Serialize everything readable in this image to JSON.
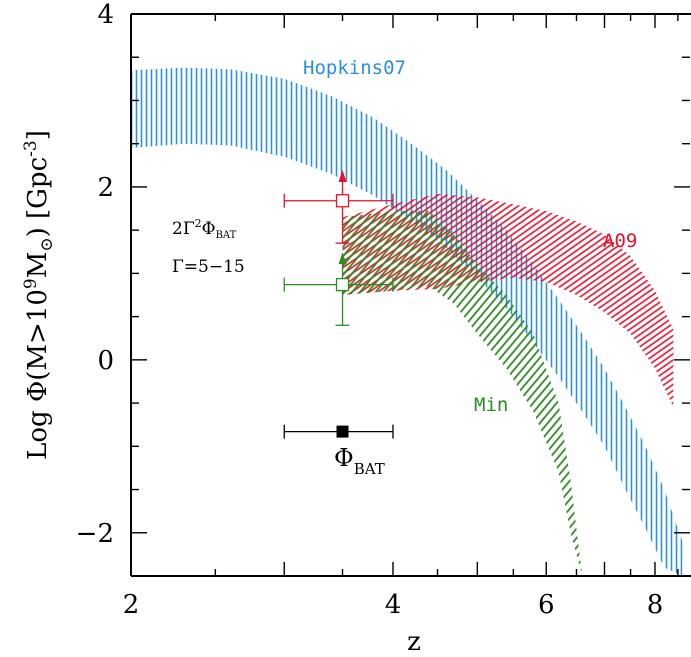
{
  "chart_data": {
    "type": "area",
    "x_scale": "log",
    "xlim": [
      2,
      8.8
    ],
    "ylim": [
      -2.5,
      4
    ],
    "xlabel": "z",
    "ylabel": {
      "prefix": "Log  Φ(M>10",
      "exp": "9",
      "mid": "M",
      "sub": "⊙",
      "suffix": ")  [Gpc",
      "exp2": "-3",
      "end": "]"
    },
    "x_ticks": [
      2,
      4,
      6,
      8
    ],
    "y_ticks": [
      -2,
      0,
      2,
      4
    ],
    "series": [
      {
        "name": "Hopkins07",
        "color": "#2b8fe0",
        "x": [
          2.0,
          2.3,
          2.6,
          3.0,
          3.4,
          3.8,
          4.2,
          4.6,
          5.0,
          5.4,
          5.8,
          6.2,
          6.6,
          7.0,
          7.4,
          7.8,
          8.2,
          8.6
        ],
        "upper": [
          3.35,
          3.38,
          3.36,
          3.25,
          3.05,
          2.8,
          2.5,
          2.2,
          1.85,
          1.5,
          1.1,
          0.7,
          0.3,
          -0.1,
          -0.55,
          -1.0,
          -1.5,
          -2.1
        ],
        "lower": [
          2.45,
          2.5,
          2.48,
          2.35,
          2.15,
          1.9,
          1.6,
          1.3,
          0.95,
          0.6,
          0.2,
          -0.2,
          -0.6,
          -1.0,
          -1.5,
          -1.95,
          -2.4,
          -2.5
        ]
      },
      {
        "name": "A09",
        "color": "#e8102a",
        "x": [
          3.5,
          4.0,
          4.5,
          5.0,
          5.5,
          6.0,
          6.5,
          7.0,
          7.5,
          8.0,
          8.4
        ],
        "upper": [
          1.65,
          1.8,
          1.92,
          1.88,
          1.8,
          1.72,
          1.6,
          1.45,
          1.2,
          0.8,
          0.35
        ],
        "lower": [
          0.75,
          0.8,
          0.82,
          0.9,
          0.95,
          0.9,
          0.75,
          0.55,
          0.3,
          -0.1,
          -0.55
        ]
      },
      {
        "name": "Min",
        "color": "#2e8b22",
        "x": [
          3.5,
          4.0,
          4.4,
          4.7,
          5.0,
          5.4,
          5.8,
          6.2,
          6.4,
          6.6
        ],
        "upper": [
          1.65,
          1.72,
          1.72,
          1.45,
          1.1,
          0.75,
          0.3,
          -0.5,
          -1.4,
          -2.5
        ],
        "lower": [
          0.75,
          0.8,
          0.85,
          0.65,
          0.3,
          -0.1,
          -0.6,
          -1.3,
          -2.0,
          -2.5
        ]
      }
    ],
    "points": [
      {
        "name": "phi_bat",
        "label": "Φ",
        "label_sub": "BAT",
        "x": 3.5,
        "y": -0.83,
        "xerr": [
          3.0,
          4.0
        ],
        "color": "#000000",
        "marker": "filled-square"
      },
      {
        "name": "red-point",
        "x": 3.5,
        "y": 1.84,
        "xerr": [
          3.0,
          4.0
        ],
        "yerr": [
          1.35,
          2.15
        ],
        "color": "#e8102a",
        "marker": "open-square",
        "arrow": "up"
      },
      {
        "name": "green-point",
        "x": 3.5,
        "y": 0.87,
        "xerr": [
          3.0,
          4.0
        ],
        "yerr": [
          0.4,
          1.2
        ],
        "color": "#2e8b22",
        "marker": "open-square",
        "arrow": "up"
      }
    ],
    "annotations": {
      "formula": {
        "coef": "2Γ",
        "sup": "2",
        "phi": "Φ",
        "sub": "BAT"
      },
      "gamma": "Γ=5−15"
    }
  }
}
